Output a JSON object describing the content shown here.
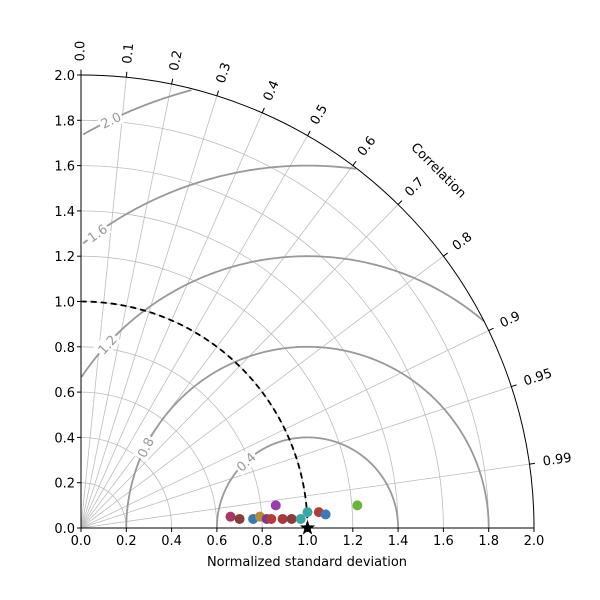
{
  "chart_data": {
    "type": "scatter",
    "subtype": "taylor-diagram",
    "title": "",
    "xlabel": "Normalized standard deviation",
    "angular_label": "Correlation",
    "xlim": [
      0,
      2
    ],
    "ylim": [
      0,
      2
    ],
    "radial_ticks": [
      "0.0",
      "0.2",
      "0.4",
      "0.6",
      "0.8",
      "1.0",
      "1.2",
      "1.4",
      "1.6",
      "1.8",
      "2.0"
    ],
    "radial_tick_values": [
      0,
      0.2,
      0.4,
      0.6,
      0.8,
      1.0,
      1.2,
      1.4,
      1.6,
      1.8,
      2.0
    ],
    "correlation_ticks": [
      {
        "value": 0.0,
        "label": "0.0"
      },
      {
        "value": 0.1,
        "label": "0.1"
      },
      {
        "value": 0.2,
        "label": "0.2"
      },
      {
        "value": 0.3,
        "label": "0.3"
      },
      {
        "value": 0.4,
        "label": "0.4"
      },
      {
        "value": 0.5,
        "label": "0.5"
      },
      {
        "value": 0.6,
        "label": "0.6"
      },
      {
        "value": 0.7,
        "label": "0.7"
      },
      {
        "value": 0.8,
        "label": "0.8"
      },
      {
        "value": 0.9,
        "label": "0.9"
      },
      {
        "value": 0.95,
        "label": "0.95"
      },
      {
        "value": 0.99,
        "label": "0.99"
      }
    ],
    "rms_contours": [
      {
        "value": 0.4,
        "label": "0.4"
      },
      {
        "value": 0.8,
        "label": "0.8"
      },
      {
        "value": 1.2,
        "label": "1.2"
      },
      {
        "value": 1.6,
        "label": "1.6"
      },
      {
        "value": 2.0,
        "label": "2.0"
      }
    ],
    "rms_extra_contours": [
      2.4,
      2.8
    ],
    "reference": {
      "std": 1.0,
      "marker": "star"
    },
    "grid": true,
    "points": [
      {
        "x": 0.66,
        "y": 0.05,
        "color": "#a63a66"
      },
      {
        "x": 0.7,
        "y": 0.04,
        "color": "#8a3b3b"
      },
      {
        "x": 0.76,
        "y": 0.04,
        "color": "#3a7ab5"
      },
      {
        "x": 0.79,
        "y": 0.05,
        "color": "#b58a3a"
      },
      {
        "x": 0.82,
        "y": 0.04,
        "color": "#7a3a8a"
      },
      {
        "x": 0.84,
        "y": 0.04,
        "color": "#b53a3a"
      },
      {
        "x": 0.86,
        "y": 0.1,
        "color": "#9a3ab5"
      },
      {
        "x": 0.89,
        "y": 0.04,
        "color": "#a63a3a"
      },
      {
        "x": 0.93,
        "y": 0.04,
        "color": "#8a3b3b"
      },
      {
        "x": 0.97,
        "y": 0.04,
        "color": "#3aa6a6"
      },
      {
        "x": 1.0,
        "y": 0.07,
        "color": "#3aa6a6"
      },
      {
        "x": 1.05,
        "y": 0.07,
        "color": "#b53a3a"
      },
      {
        "x": 1.08,
        "y": 0.06,
        "color": "#3a7ab5"
      },
      {
        "x": 1.22,
        "y": 0.1,
        "color": "#6ab53a"
      }
    ]
  }
}
